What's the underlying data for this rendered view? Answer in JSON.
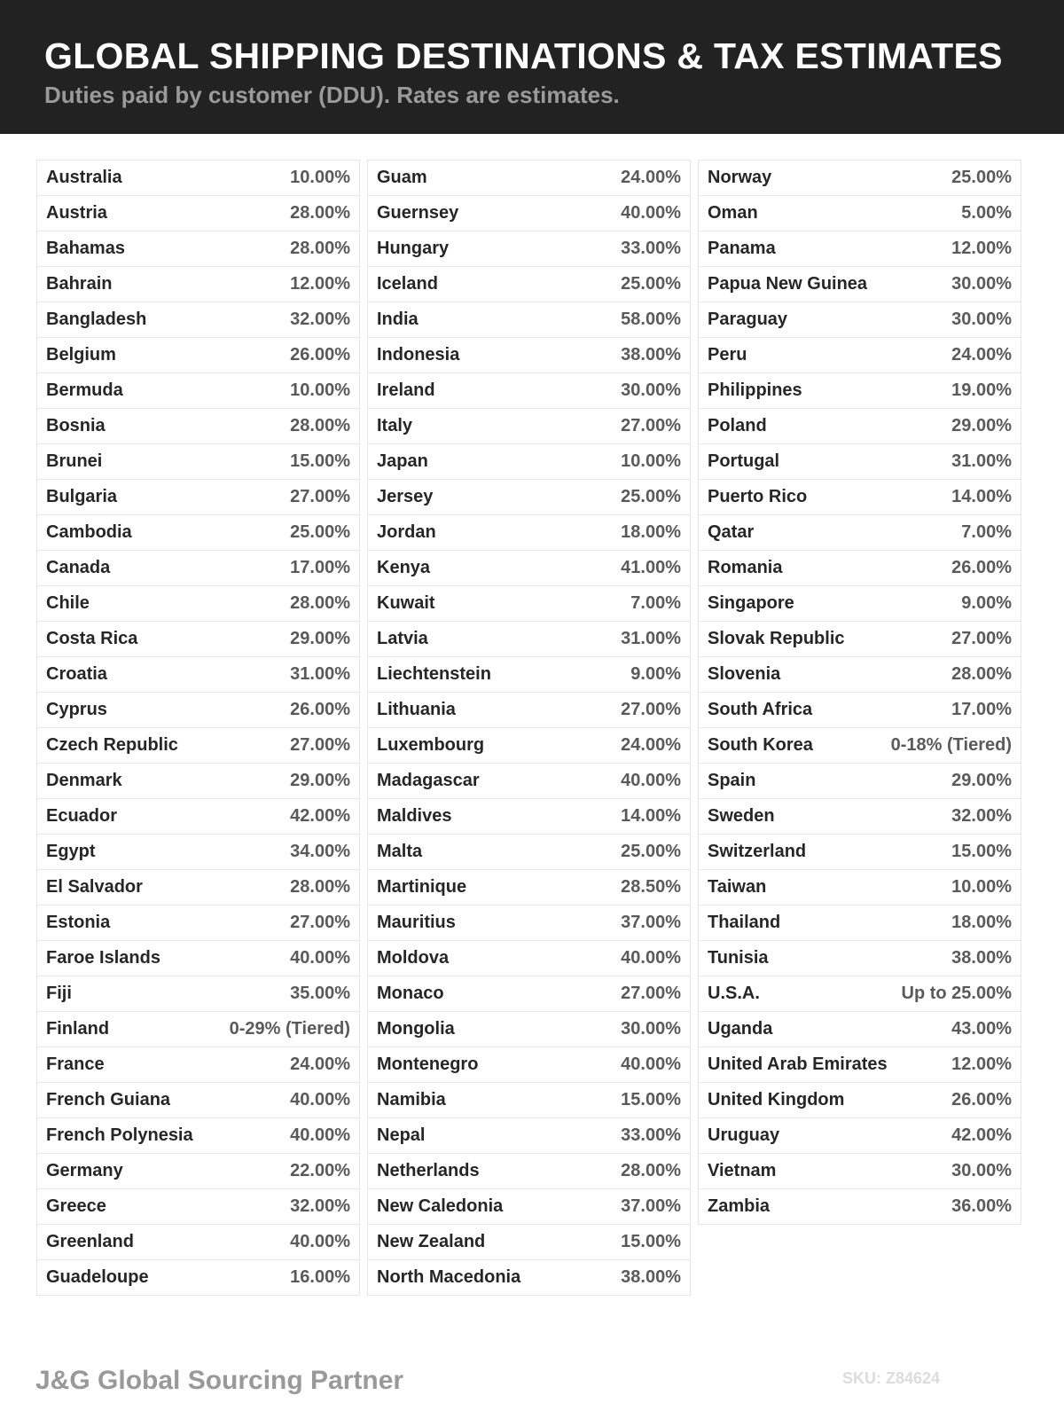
{
  "header": {
    "title": "GLOBAL SHIPPING DESTINATIONS & TAX ESTIMATES",
    "subtitle": "Duties paid by customer (DDU). Rates are estimates."
  },
  "columns": [
    [
      [
        "Australia",
        "10.00%"
      ],
      [
        "Austria",
        "28.00%"
      ],
      [
        "Bahamas",
        "28.00%"
      ],
      [
        "Bahrain",
        "12.00%"
      ],
      [
        "Bangladesh",
        "32.00%"
      ],
      [
        "Belgium",
        "26.00%"
      ],
      [
        "Bermuda",
        "10.00%"
      ],
      [
        "Bosnia",
        "28.00%"
      ],
      [
        "Brunei",
        "15.00%"
      ],
      [
        "Bulgaria",
        "27.00%"
      ],
      [
        "Cambodia",
        "25.00%"
      ],
      [
        "Canada",
        "17.00%"
      ],
      [
        "Chile",
        "28.00%"
      ],
      [
        "Costa Rica",
        "29.00%"
      ],
      [
        "Croatia",
        "31.00%"
      ],
      [
        "Cyprus",
        "26.00%"
      ],
      [
        "Czech Republic",
        "27.00%"
      ],
      [
        "Denmark",
        "29.00%"
      ],
      [
        "Ecuador",
        "42.00%"
      ],
      [
        "Egypt",
        "34.00%"
      ],
      [
        "El Salvador",
        "28.00%"
      ],
      [
        "Estonia",
        "27.00%"
      ],
      [
        "Faroe Islands",
        "40.00%"
      ],
      [
        "Fiji",
        "35.00%"
      ],
      [
        "Finland",
        "0-29% (Tiered)"
      ],
      [
        "France",
        "24.00%"
      ],
      [
        "French Guiana",
        "40.00%"
      ],
      [
        "French Polynesia",
        "40.00%"
      ],
      [
        "Germany",
        "22.00%"
      ],
      [
        "Greece",
        "32.00%"
      ],
      [
        "Greenland",
        "40.00%"
      ],
      [
        "Guadeloupe",
        "16.00%"
      ]
    ],
    [
      [
        "Guam",
        "24.00%"
      ],
      [
        "Guernsey",
        "40.00%"
      ],
      [
        "Hungary",
        "33.00%"
      ],
      [
        "Iceland",
        "25.00%"
      ],
      [
        "India",
        "58.00%"
      ],
      [
        "Indonesia",
        "38.00%"
      ],
      [
        "Ireland",
        "30.00%"
      ],
      [
        "Italy",
        "27.00%"
      ],
      [
        "Japan",
        "10.00%"
      ],
      [
        "Jersey",
        "25.00%"
      ],
      [
        "Jordan",
        "18.00%"
      ],
      [
        "Kenya",
        "41.00%"
      ],
      [
        "Kuwait",
        "7.00%"
      ],
      [
        "Latvia",
        "31.00%"
      ],
      [
        "Liechtenstein",
        "9.00%"
      ],
      [
        "Lithuania",
        "27.00%"
      ],
      [
        "Luxembourg",
        "24.00%"
      ],
      [
        "Madagascar",
        "40.00%"
      ],
      [
        "Maldives",
        "14.00%"
      ],
      [
        "Malta",
        "25.00%"
      ],
      [
        "Martinique",
        "28.50%"
      ],
      [
        "Mauritius",
        "37.00%"
      ],
      [
        "Moldova",
        "40.00%"
      ],
      [
        "Monaco",
        "27.00%"
      ],
      [
        "Mongolia",
        "30.00%"
      ],
      [
        "Montenegro",
        "40.00%"
      ],
      [
        "Namibia",
        "15.00%"
      ],
      [
        "Nepal",
        "33.00%"
      ],
      [
        "Netherlands",
        "28.00%"
      ],
      [
        "New Caledonia",
        "37.00%"
      ],
      [
        "New Zealand",
        "15.00%"
      ],
      [
        "North Macedonia",
        "38.00%"
      ]
    ],
    [
      [
        "Norway",
        "25.00%"
      ],
      [
        "Oman",
        "5.00%"
      ],
      [
        "Panama",
        "12.00%"
      ],
      [
        "Papua New Guinea",
        "30.00%"
      ],
      [
        "Paraguay",
        "30.00%"
      ],
      [
        "Peru",
        "24.00%"
      ],
      [
        "Philippines",
        "19.00%"
      ],
      [
        "Poland",
        "29.00%"
      ],
      [
        "Portugal",
        "31.00%"
      ],
      [
        "Puerto Rico",
        "14.00%"
      ],
      [
        "Qatar",
        "7.00%"
      ],
      [
        "Romania",
        "26.00%"
      ],
      [
        "Singapore",
        "9.00%"
      ],
      [
        "Slovak Republic",
        "27.00%"
      ],
      [
        "Slovenia",
        "28.00%"
      ],
      [
        "South Africa",
        "17.00%"
      ],
      [
        "South Korea",
        "0-18% (Tiered)"
      ],
      [
        "Spain",
        "29.00%"
      ],
      [
        "Sweden",
        "32.00%"
      ],
      [
        "Switzerland",
        "15.00%"
      ],
      [
        "Taiwan",
        "10.00%"
      ],
      [
        "Thailand",
        "18.00%"
      ],
      [
        "Tunisia",
        "38.00%"
      ],
      [
        "U.S.A.",
        "Up to 25.00%"
      ],
      [
        "Uganda",
        "43.00%"
      ],
      [
        "United Arab Emirates",
        "12.00%"
      ],
      [
        "United Kingdom",
        "26.00%"
      ],
      [
        "Uruguay",
        "42.00%"
      ],
      [
        "Vietnam",
        "30.00%"
      ],
      [
        "Zambia",
        "36.00%"
      ]
    ]
  ],
  "footer": {
    "brand": "J&G Global Sourcing Partner",
    "sku": "SKU: Z84624"
  },
  "colors": {
    "header_bg": "#222222",
    "name_text": "#262626",
    "value_text": "#5a5a5a"
  }
}
